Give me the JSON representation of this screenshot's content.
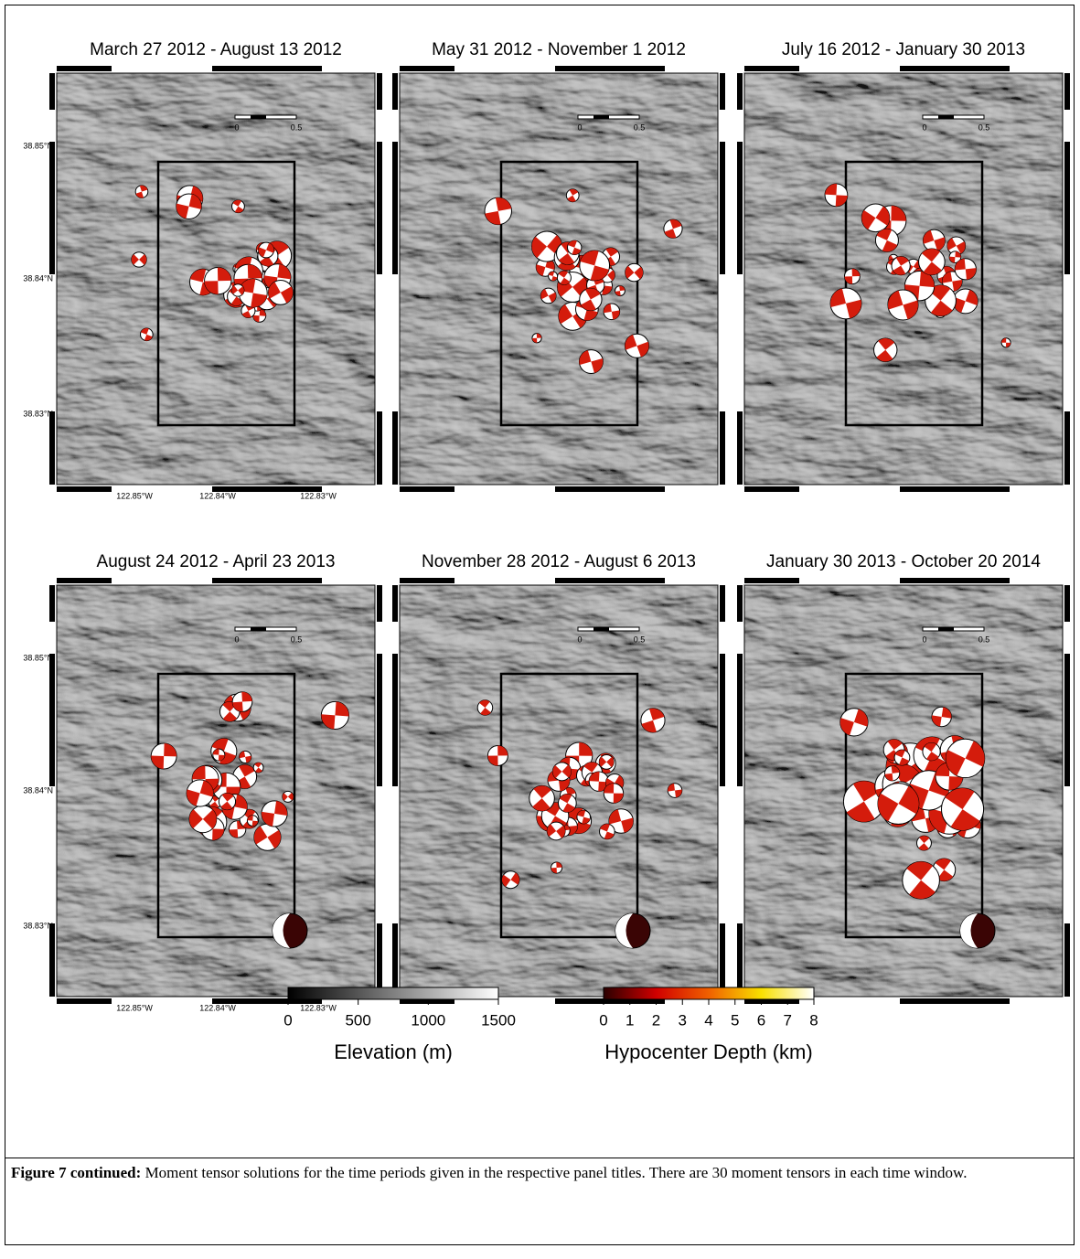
{
  "panels": [
    {
      "title": "March 27 2012 - August 13 2012"
    },
    {
      "title": "May 31 2012 - November 1 2012"
    },
    {
      "title": "July 16 2012 - January 30 2013"
    },
    {
      "title": "August 24 2012 - April 23 2013"
    },
    {
      "title": "November 28 2012 - August 6 2013"
    },
    {
      "title": "January 30 2013 - October 20 2014"
    }
  ],
  "axis_labels": {
    "lat": [
      "38.85°N",
      "38.84°N",
      "38.83°N"
    ],
    "lon": [
      "122.85°W",
      "122.84°W",
      "122.83°W"
    ]
  },
  "scale_bar": {
    "labels": [
      "0",
      "0.5"
    ]
  },
  "colorbars": [
    {
      "title": "Elevation (m)",
      "ticks": [
        "0",
        "500",
        "1000",
        "1500"
      ]
    },
    {
      "title": "Hypocenter Depth (km)",
      "ticks": [
        "0",
        "1",
        "2",
        "3",
        "4",
        "5",
        "6",
        "7",
        "8"
      ]
    }
  ],
  "caption": {
    "label": "Figure 7 continued:",
    "text": "Moment tensor solutions for the time periods given in the respective panel titles. There are 30 moment tensors in each time window."
  }
}
